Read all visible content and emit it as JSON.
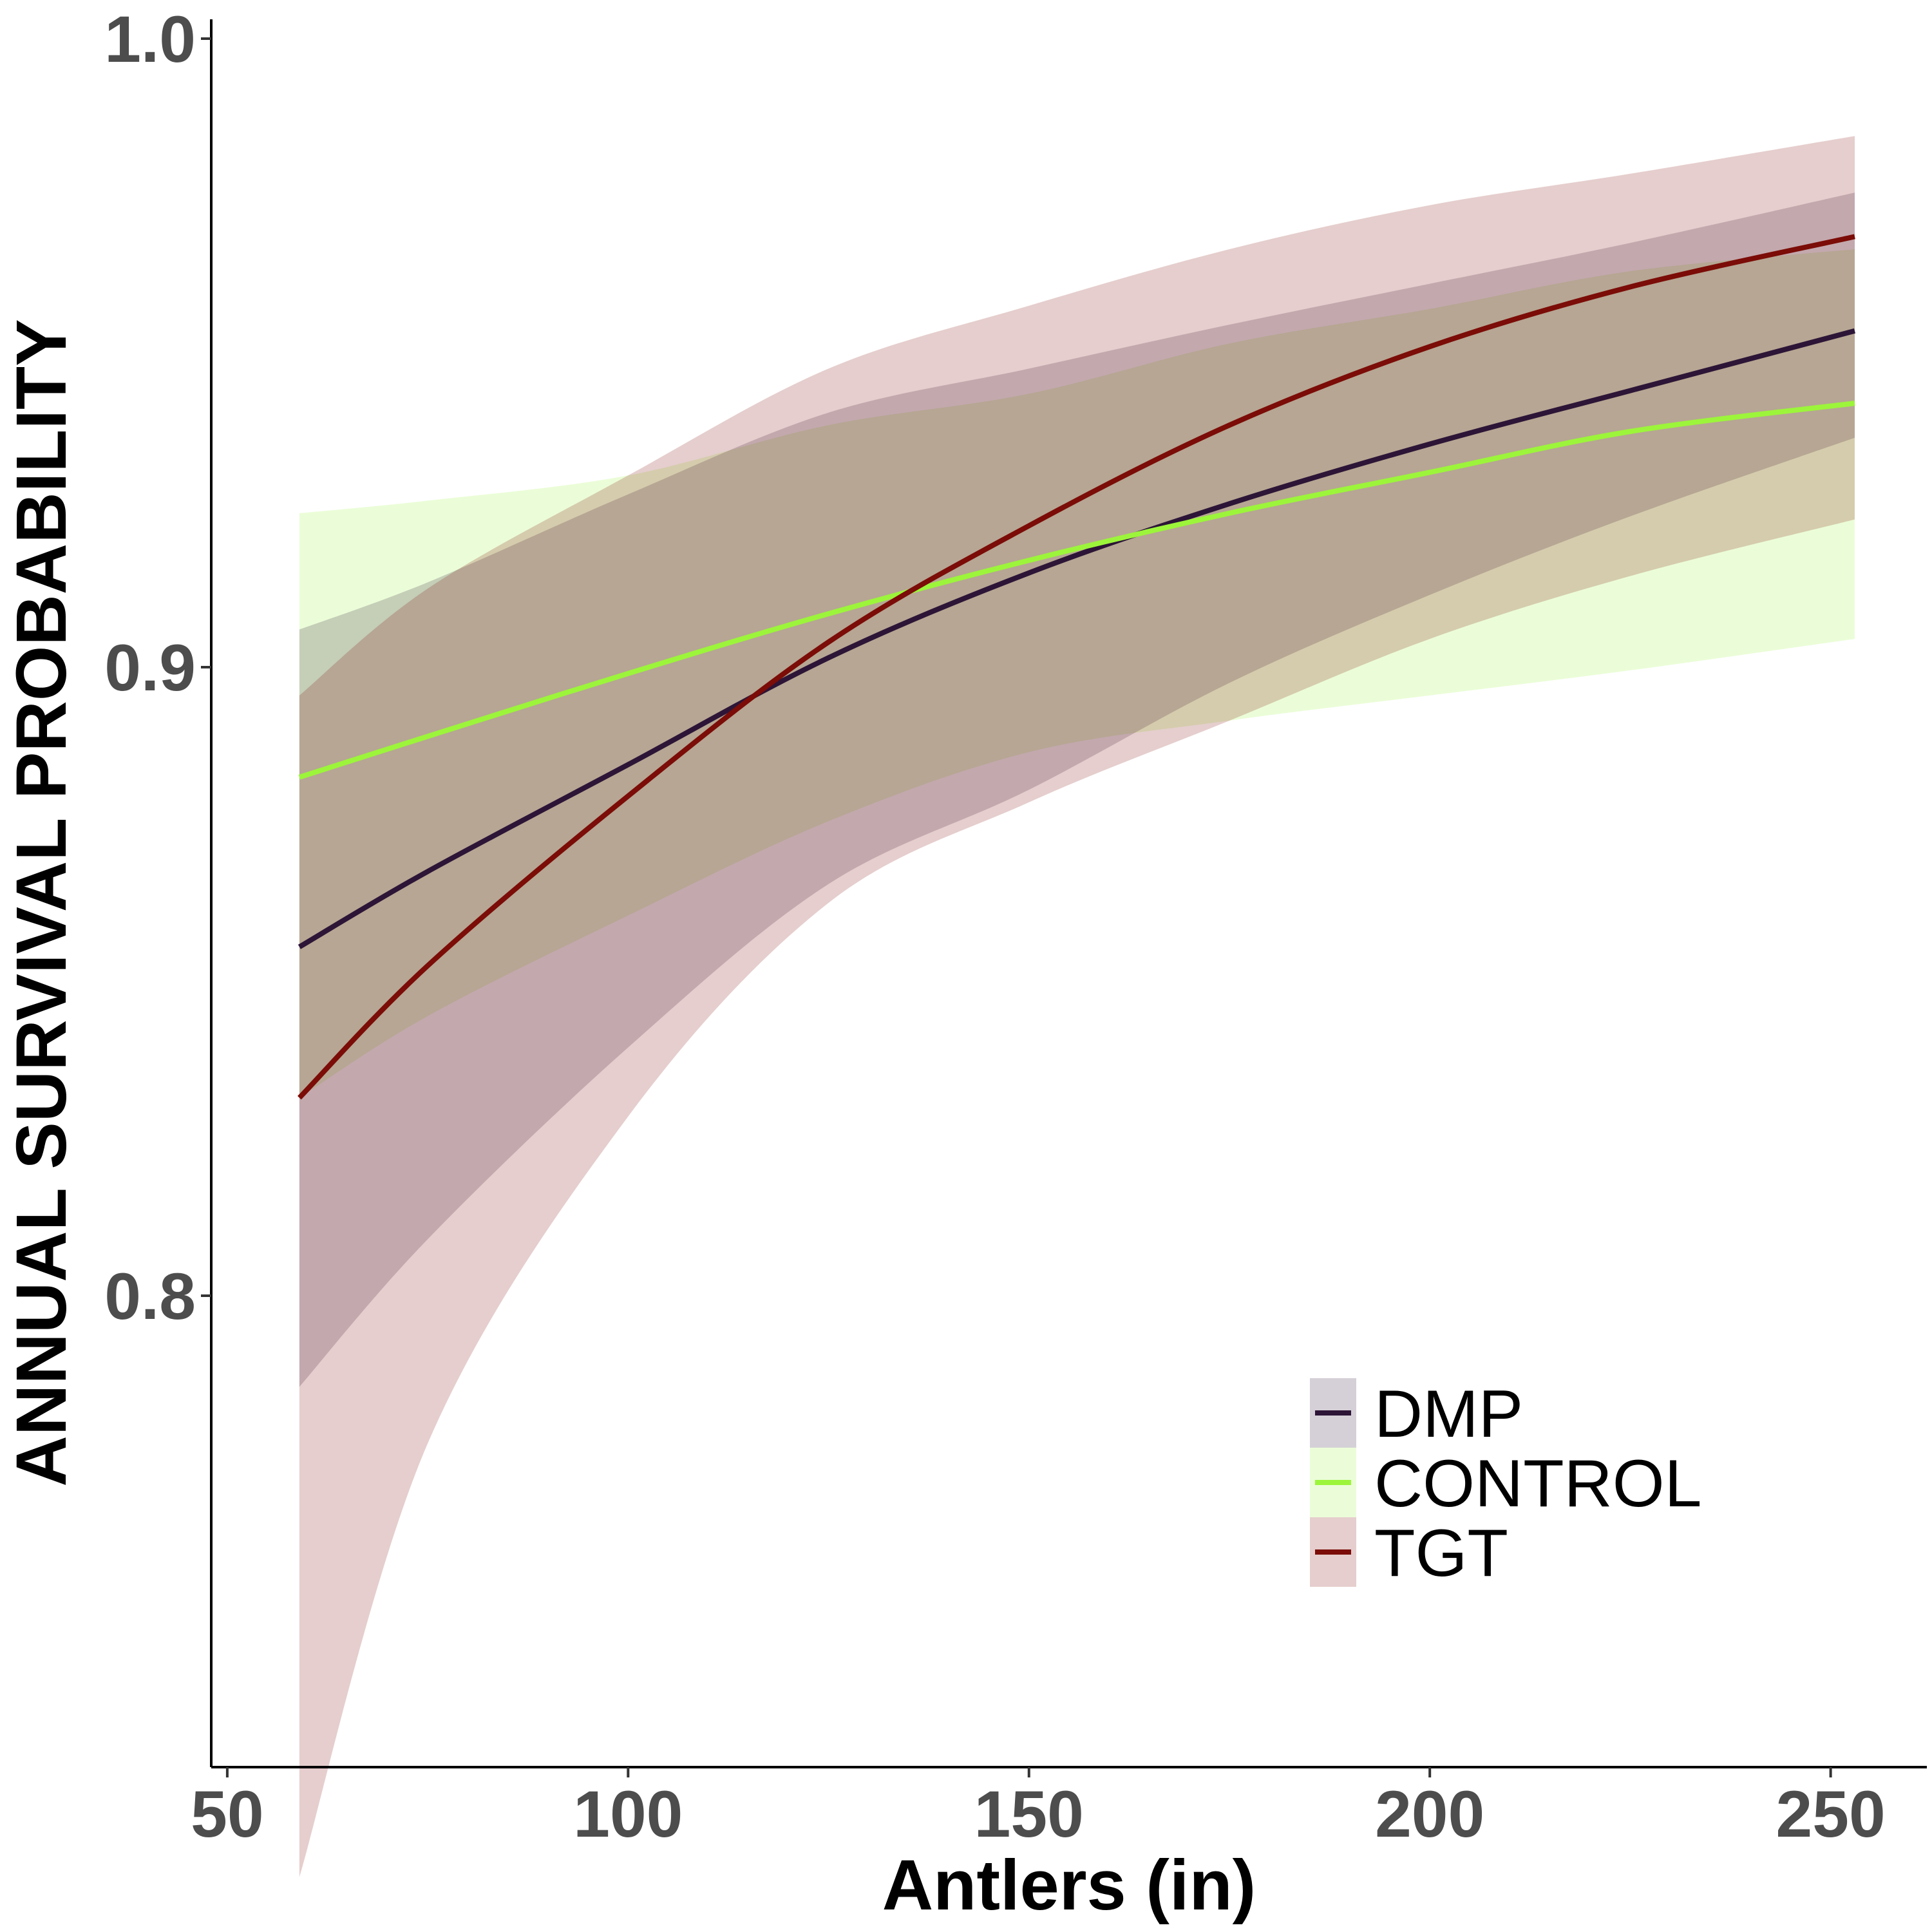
{
  "chart_data": {
    "type": "line",
    "title": "",
    "xlabel": "Antlers (in)",
    "ylabel": "ANNUAL SURVIVAL PROBABILITY",
    "xlim": [
      48,
      262
    ],
    "ylim": [
      0.725,
      1.0
    ],
    "xticks": [
      50,
      100,
      150,
      200,
      250
    ],
    "yticks": [
      0.8,
      0.9,
      1.0
    ],
    "xtick_labels": [
      "50",
      "100",
      "150",
      "200",
      "250"
    ],
    "ytick_labels": [
      "0.8",
      "0.9",
      "1.0"
    ],
    "grid": false,
    "legend_position": "bottom-right",
    "x": [
      59,
      75,
      100,
      125,
      150,
      175,
      200,
      225,
      253
    ],
    "series": [
      {
        "name": "DMP",
        "color": "#2d1537",
        "ribbon_color": "#2d1537",
        "values": [
          0.8555,
          0.8675,
          0.8845,
          0.9015,
          0.915,
          0.926,
          0.9355,
          0.944,
          0.9535
        ],
        "lower": [
          0.7855,
          0.809,
          0.8395,
          0.8655,
          0.8805,
          0.8975,
          0.9115,
          0.924,
          0.9365
        ],
        "upper": [
          0.906,
          0.9135,
          0.9275,
          0.9405,
          0.9475,
          0.9545,
          0.961,
          0.9675,
          0.9755
        ]
      },
      {
        "name": "CONTROL",
        "color": "#9cf53a",
        "ribbon_color": "#9cf53a",
        "values": [
          0.8825,
          0.889,
          0.899,
          0.9085,
          0.917,
          0.9245,
          0.931,
          0.9375,
          0.942
        ],
        "lower": [
          0.8315,
          0.8445,
          0.8605,
          0.8755,
          0.8865,
          0.8915,
          0.8955,
          0.8995,
          0.9045
        ],
        "upper": [
          0.9245,
          0.9265,
          0.9305,
          0.9385,
          0.9435,
          0.9515,
          0.957,
          0.963,
          0.9665
        ]
      },
      {
        "name": "TGT",
        "color": "#7b0c07",
        "ribbon_color": "#7b0c07",
        "values": [
          0.8315,
          0.8525,
          0.8795,
          0.904,
          0.9225,
          0.9385,
          0.951,
          0.9605,
          0.9685
        ],
        "lower": [
          0.7075,
          0.7765,
          0.8285,
          0.8625,
          0.8785,
          0.8915,
          0.9045,
          0.9145,
          0.9235
        ],
        "upper": [
          0.8955,
          0.9125,
          0.9305,
          0.9475,
          0.9575,
          0.9665,
          0.9735,
          0.9785,
          0.9845
        ]
      }
    ]
  }
}
